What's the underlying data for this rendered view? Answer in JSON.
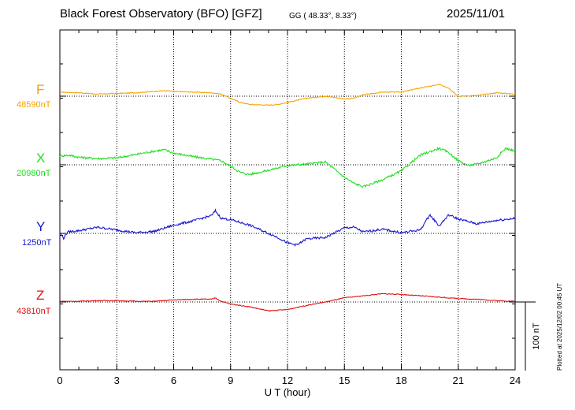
{
  "header": {
    "title": "Black Forest Observatory (BFO)  [GFZ]",
    "coords": "GG ( 48.33°,   8.33°)",
    "date": "2025/11/01"
  },
  "plotted_note": "Plotted at 2025/12/02 00:45 UT",
  "chart_data": {
    "type": "line",
    "title": "Black Forest Observatory (BFO)  [GFZ]",
    "xlabel": "U T (hour)",
    "ylabel": "",
    "xlim": [
      0,
      24
    ],
    "xticks": [
      0,
      3,
      6,
      9,
      12,
      15,
      18,
      21,
      24
    ],
    "scale_bar": "100 nT",
    "grid": true,
    "series": [
      {
        "name": "F",
        "baseline_label": "48590nT",
        "baseline_nT": 48590,
        "color": "#f5a300",
        "x": [
          0,
          1,
          2,
          3,
          4,
          5,
          5.5,
          6,
          7,
          8,
          8.5,
          9,
          9.5,
          10,
          11,
          11.5,
          12,
          13,
          14,
          15,
          15.5,
          16,
          17,
          18,
          19,
          20,
          20.5,
          21,
          22,
          23,
          24
        ],
        "y": [
          6,
          5,
          3,
          4,
          5,
          7,
          8,
          7,
          6,
          5,
          3,
          -3,
          -9,
          -12,
          -13,
          -12,
          -9,
          -3,
          0,
          -4,
          -3,
          2,
          6,
          6,
          12,
          17,
          12,
          0,
          1,
          5,
          3
        ]
      },
      {
        "name": "X",
        "baseline_label": "20980nT",
        "baseline_nT": 20980,
        "color": "#22dd22",
        "x": [
          0,
          0.5,
          1,
          2,
          3,
          4,
          5,
          5.5,
          6,
          7,
          8,
          8.5,
          9,
          9.5,
          10,
          11,
          12,
          13,
          14,
          15,
          15.5,
          16,
          17,
          18,
          19,
          20,
          20.5,
          21,
          21.5,
          22,
          23,
          23.5,
          24
        ],
        "y": [
          13,
          14,
          11,
          9,
          10,
          15,
          20,
          22,
          17,
          12,
          8,
          6,
          -2,
          -11,
          -14,
          -8,
          -1,
          1,
          4,
          -18,
          -27,
          -32,
          -22,
          -9,
          14,
          24,
          18,
          6,
          -1,
          1,
          10,
          24,
          20
        ]
      },
      {
        "name": "Y",
        "baseline_label": "1250nT",
        "baseline_nT": 1250,
        "color": "#1515cc",
        "x": [
          0,
          0.2,
          0.4,
          1,
          2,
          3,
          4,
          5,
          6,
          7,
          8,
          8.2,
          8.5,
          9,
          10,
          11,
          11.5,
          12,
          12.5,
          13,
          14,
          15,
          15.5,
          16,
          17,
          18,
          19,
          19.5,
          20,
          20.5,
          21,
          22,
          23,
          24
        ],
        "y": [
          1,
          -7,
          2,
          4,
          9,
          5,
          1,
          3,
          12,
          18,
          26,
          33,
          22,
          20,
          12,
          0,
          -6,
          -14,
          -17,
          -8,
          -6,
          8,
          9,
          2,
          6,
          1,
          5,
          27,
          11,
          27,
          21,
          14,
          19,
          22
        ]
      },
      {
        "name": "Z",
        "baseline_label": "43810nT",
        "baseline_nT": 43810,
        "color": "#dd1111",
        "x": [
          0,
          1,
          2,
          3,
          4,
          5,
          6,
          7,
          8,
          8.2,
          8.5,
          9,
          10,
          11,
          12,
          13,
          14,
          15,
          16,
          17,
          18,
          19,
          20,
          21,
          22,
          23,
          24
        ],
        "y": [
          1,
          1,
          2,
          2,
          1,
          1,
          3,
          4,
          4,
          6,
          1,
          -3,
          -7,
          -13,
          -11,
          -5,
          0,
          6,
          9,
          12,
          11,
          9,
          7,
          5,
          4,
          2,
          1
        ]
      }
    ]
  }
}
